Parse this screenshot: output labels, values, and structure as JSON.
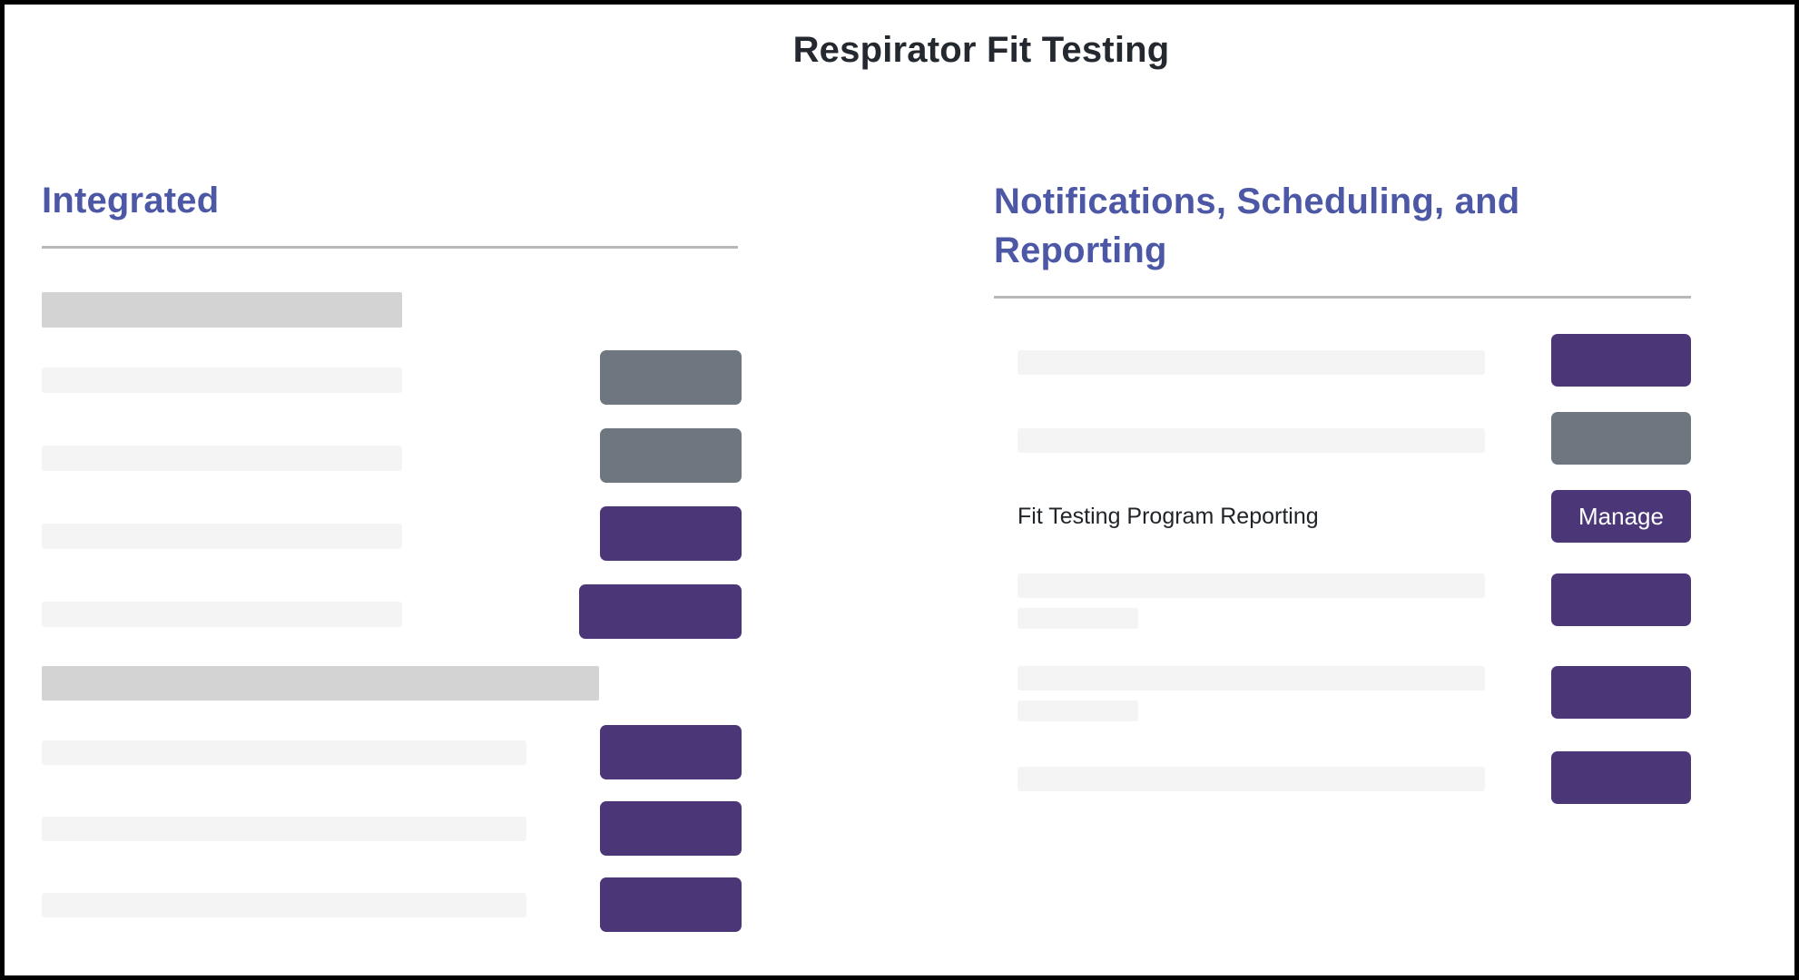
{
  "window": {
    "title": "Respirator Fit Testing"
  },
  "colors": {
    "button_purple": "#4B3778",
    "button_slate": "#6E7780",
    "heading_indigo": "#4C58A6",
    "skeleton_light": "#F4F4F4",
    "skeleton_dark": "#D3D3D3",
    "divider_gray": "#B8B8B8",
    "title_text": "#24282F",
    "body_text": "#212529",
    "frame_border": "#000000"
  },
  "left_section": {
    "heading": "Integrated",
    "rows": [
      {
        "type": "section_title_skeleton"
      },
      {
        "type": "item_skeleton",
        "button_style": "slate"
      },
      {
        "type": "item_skeleton",
        "button_style": "slate"
      },
      {
        "type": "item_skeleton",
        "button_style": "purple"
      },
      {
        "type": "item_skeleton",
        "button_style": "purple_wide"
      },
      {
        "type": "section_title_skeleton"
      },
      {
        "type": "item_skeleton",
        "button_style": "purple"
      },
      {
        "type": "item_skeleton",
        "button_style": "purple"
      },
      {
        "type": "item_skeleton",
        "button_style": "purple"
      }
    ]
  },
  "right_section": {
    "heading": "Notifications, Scheduling, and Reporting",
    "rows": [
      {
        "type": "item_skeleton",
        "button_style": "purple"
      },
      {
        "type": "item_skeleton",
        "button_style": "slate"
      },
      {
        "type": "item",
        "label": "Fit Testing Program Reporting",
        "button_style": "purple",
        "button_label": "Manage"
      },
      {
        "type": "item_skeleton_two_lines",
        "button_style": "purple"
      },
      {
        "type": "item_skeleton_two_lines",
        "button_style": "purple"
      },
      {
        "type": "item_skeleton",
        "button_style": "purple"
      }
    ]
  }
}
